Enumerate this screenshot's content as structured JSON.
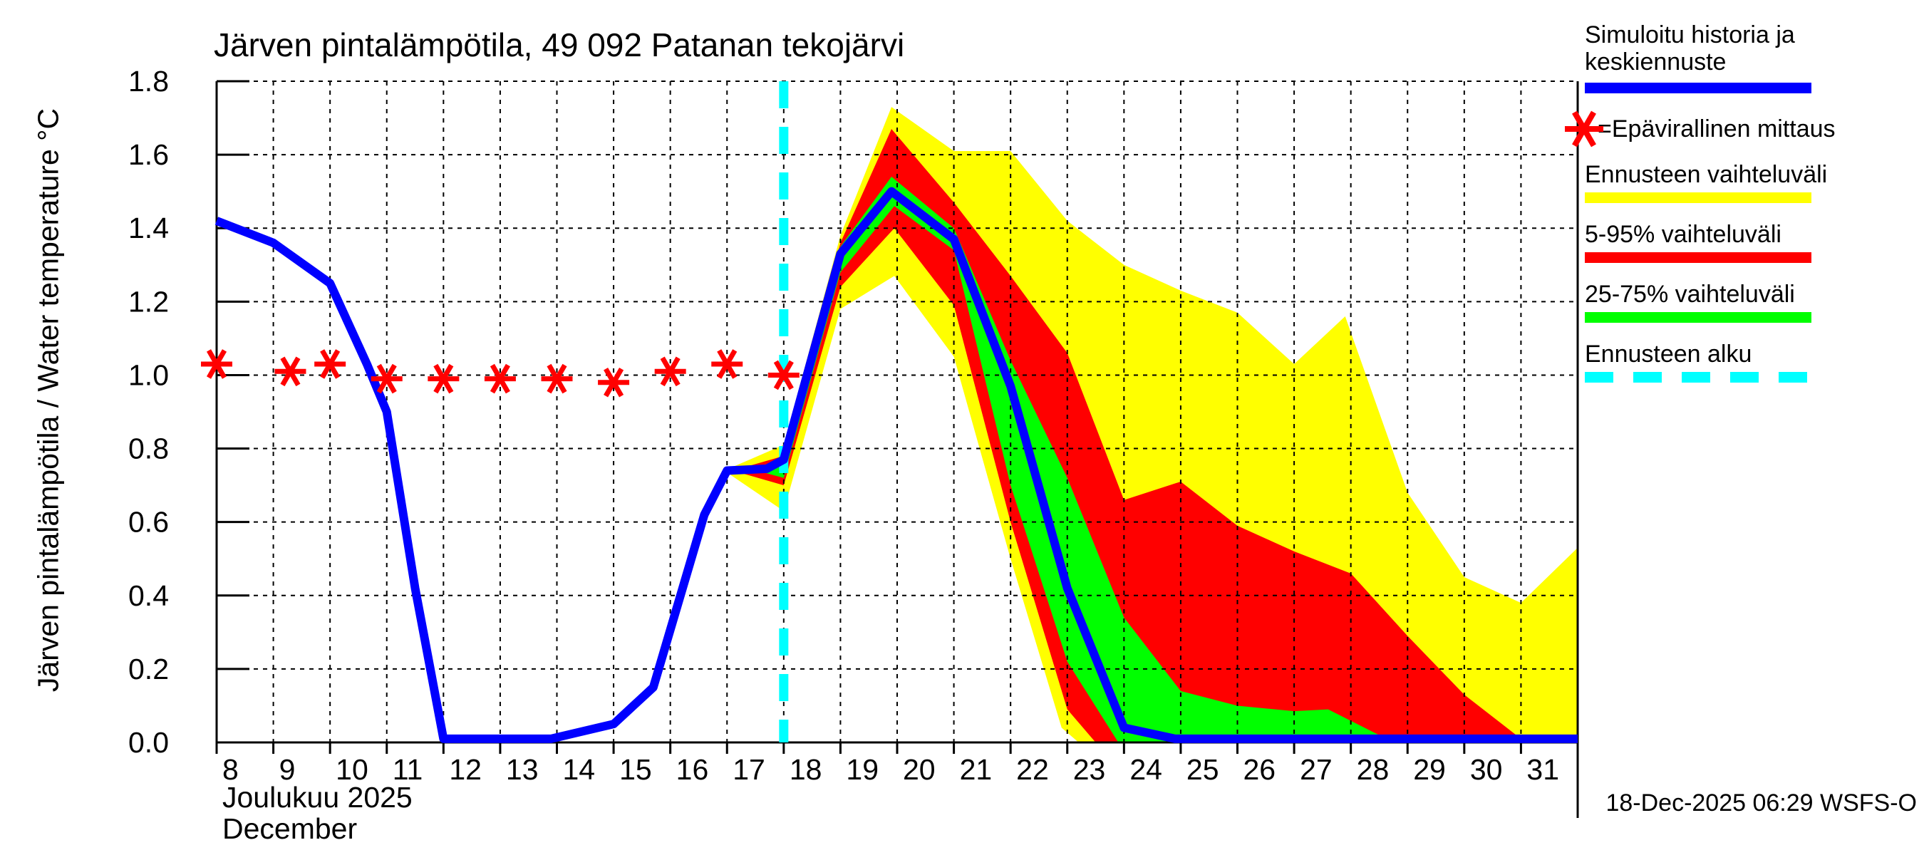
{
  "figure": {
    "title": "Järven pintalämpötila, 49 092 Patanan tekojärvi",
    "y_axis_label": "Järven pintalämpötila / Water temperature °C",
    "x_axis_label_fi": "Joulukuu  2025",
    "x_axis_label_en": "December",
    "timestamp": "18-Dec-2025 06:29 WSFS-O"
  },
  "legend": {
    "items": [
      {
        "label": "Simuloitu historia ja keskiennuste",
        "swatch": "blue-bar",
        "color": "#0000ff"
      },
      {
        "label": "=Epävirallinen mittaus",
        "swatch": "red-asterisk",
        "color": "#ff0000"
      },
      {
        "label": "Ennusteen vaihteluväli",
        "swatch": "yellow-bar",
        "color": "#ffff00"
      },
      {
        "label": "5-95% vaihteluväli",
        "swatch": "red-bar",
        "color": "#ff0000"
      },
      {
        "label": "25-75% vaihteluväli",
        "swatch": "green-bar",
        "color": "#00ff00"
      },
      {
        "label": "Ennusteen alku",
        "swatch": "cyan-dashed-line",
        "color": "#00ffff"
      }
    ]
  },
  "chart_data": {
    "type": "area",
    "title": "Järven pintalämpötila, 49 092 Patanan tekojärvi",
    "ylabel": "Järven pintalämpötila / Water temperature °C",
    "xlabel": "Joulukuu 2025 / December",
    "ylim": [
      0,
      1.8
    ],
    "ytick_step": 0.2,
    "yticks": [
      0.0,
      0.2,
      0.4,
      0.6,
      0.8,
      1.0,
      1.2,
      1.4,
      1.6,
      1.8
    ],
    "xlim_days": [
      8,
      32
    ],
    "xticks": [
      8,
      9,
      10,
      11,
      12,
      13,
      14,
      15,
      16,
      17,
      18,
      19,
      20,
      21,
      22,
      23,
      24,
      25,
      26,
      27,
      28,
      29,
      30,
      31
    ],
    "grid": true,
    "forecast_start_day": 18,
    "colors": {
      "mean": "#0000ff",
      "measurement": "#ff0000",
      "range_full": "#ffff00",
      "range_5_95": "#ff0000",
      "range_25_75": "#00ff00",
      "forecast_start": "#00ffff"
    },
    "series": [
      {
        "name": "history_and_mean_forecast",
        "legend": "Simuloitu historia ja keskiennuste",
        "type": "line",
        "color": "#0000ff",
        "points": [
          [
            8,
            1.42
          ],
          [
            9,
            1.36
          ],
          [
            10,
            1.25
          ],
          [
            10.65,
            1.03
          ],
          [
            11,
            0.9
          ],
          [
            11.5,
            0.42
          ],
          [
            12,
            0.01
          ],
          [
            13.9,
            0.01
          ],
          [
            15,
            0.05
          ],
          [
            15.7,
            0.15
          ],
          [
            16.6,
            0.62
          ],
          [
            17,
            0.74
          ],
          [
            17.7,
            0.745
          ],
          [
            18,
            0.77
          ],
          [
            19,
            1.33
          ],
          [
            19.9,
            1.5
          ],
          [
            21,
            1.37
          ],
          [
            22,
            0.97
          ],
          [
            23,
            0.42
          ],
          [
            24,
            0.04
          ],
          [
            24.9,
            0.01
          ],
          [
            32,
            0.01
          ]
        ]
      },
      {
        "name": "unofficial_measurements",
        "legend": "=Epävirallinen mittaus",
        "type": "scatter-asterisk",
        "color": "#ff0000",
        "points": [
          [
            8,
            1.03
          ],
          [
            9.3,
            1.01
          ],
          [
            10,
            1.03
          ],
          [
            11,
            0.99
          ],
          [
            12,
            0.99
          ],
          [
            13,
            0.99
          ],
          [
            14,
            0.99
          ],
          [
            15,
            0.98
          ],
          [
            16,
            1.01
          ],
          [
            17,
            1.03
          ],
          [
            18,
            1.0
          ]
        ]
      },
      {
        "name": "forecast_range",
        "legend": "Ennusteen vaihteluväli",
        "type": "band",
        "color": "#ffff00",
        "upper": [
          [
            16.95,
            0.74
          ],
          [
            18,
            0.81
          ],
          [
            19,
            1.38
          ],
          [
            19.9,
            1.73
          ],
          [
            21,
            1.61
          ],
          [
            22,
            1.61
          ],
          [
            23,
            1.42
          ],
          [
            24,
            1.3
          ],
          [
            25,
            1.23
          ],
          [
            26,
            1.17
          ],
          [
            27,
            1.03
          ],
          [
            27.9,
            1.16
          ],
          [
            29,
            0.68
          ],
          [
            30,
            0.45
          ],
          [
            31,
            0.38
          ],
          [
            32,
            0.53
          ]
        ],
        "lower": [
          [
            16.95,
            0.74
          ],
          [
            18,
            0.63
          ],
          [
            19,
            1.18
          ],
          [
            19.95,
            1.27
          ],
          [
            21,
            1.05
          ],
          [
            22,
            0.5
          ],
          [
            22.9,
            0.04
          ],
          [
            23.2,
            0.0
          ],
          [
            32,
            0.0
          ]
        ]
      },
      {
        "name": "range_5_95",
        "legend": "5-95% vaihteluväli",
        "type": "band",
        "color": "#ff0000",
        "upper": [
          [
            17.1,
            0.74
          ],
          [
            18,
            0.78
          ],
          [
            19,
            1.36
          ],
          [
            19.9,
            1.67
          ],
          [
            21,
            1.47
          ],
          [
            22,
            1.27
          ],
          [
            23,
            1.06
          ],
          [
            24,
            0.66
          ],
          [
            25,
            0.71
          ],
          [
            26,
            0.59
          ],
          [
            27,
            0.52
          ],
          [
            28,
            0.46
          ],
          [
            29,
            0.29
          ],
          [
            30,
            0.13
          ],
          [
            31,
            0.01
          ],
          [
            31.1,
            0.0
          ],
          [
            32,
            0.0
          ]
        ],
        "lower": [
          [
            17.1,
            0.74
          ],
          [
            18,
            0.7
          ],
          [
            19,
            1.24
          ],
          [
            19.95,
            1.4
          ],
          [
            21,
            1.19
          ],
          [
            22,
            0.6
          ],
          [
            23,
            0.09
          ],
          [
            23.5,
            0.0
          ],
          [
            32,
            0.0
          ]
        ]
      },
      {
        "name": "range_25_75",
        "legend": "25-75% vaihteluväli",
        "type": "band",
        "color": "#00ff00",
        "upper": [
          [
            17.4,
            0.745
          ],
          [
            18,
            0.77
          ],
          [
            19,
            1.35
          ],
          [
            19.9,
            1.54
          ],
          [
            21,
            1.4
          ],
          [
            22,
            1.04
          ],
          [
            23,
            0.72
          ],
          [
            24,
            0.34
          ],
          [
            25,
            0.14
          ],
          [
            26,
            0.1
          ],
          [
            27,
            0.085
          ],
          [
            27.6,
            0.09
          ],
          [
            28.5,
            0.02
          ],
          [
            29,
            0.0
          ],
          [
            32,
            0.0
          ]
        ],
        "lower": [
          [
            17.4,
            0.745
          ],
          [
            18,
            0.72
          ],
          [
            19,
            1.28
          ],
          [
            19.95,
            1.46
          ],
          [
            21,
            1.34
          ],
          [
            22,
            0.7
          ],
          [
            23,
            0.22
          ],
          [
            23.9,
            0.0
          ],
          [
            32,
            0.0
          ]
        ]
      }
    ],
    "annotations": {
      "forecast_start_line_day": 18
    }
  }
}
